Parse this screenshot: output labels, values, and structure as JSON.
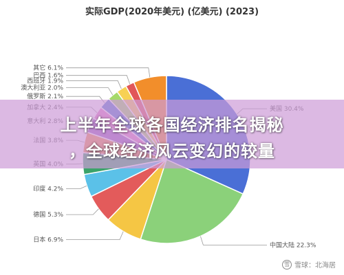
{
  "chart_data": {
    "type": "pie",
    "title": "实际GDP(2020年美元) (亿美元) (2023)",
    "slices": [
      {
        "label": "美国 30.4%",
        "value": 30.4,
        "color": "#4a6fd6"
      },
      {
        "label": "中国大陆 22.3%",
        "value": 22.3,
        "color": "#8bd17a"
      },
      {
        "label": "日本 6.9%",
        "value": 6.9,
        "color": "#f5c644"
      },
      {
        "label": "德国 5.3%",
        "value": 5.3,
        "color": "#e35b5b"
      },
      {
        "label": "印度 4.2%",
        "value": 4.2,
        "color": "#5bc1e8"
      },
      {
        "label": "英国 4.0%",
        "value": 4.0,
        "color": "#3aa36a"
      },
      {
        "label": "法国 3.8%",
        "value": 3.8,
        "color": "#f2914a"
      },
      {
        "label": "意大利 2.8%",
        "value": 2.8,
        "color": "#9b5fc0"
      },
      {
        "label": "加拿大 2.4%",
        "value": 2.4,
        "color": "#e57fc7"
      },
      {
        "label": "俄罗斯 2.1%",
        "value": 2.1,
        "color": "#4f7bd1"
      },
      {
        "label": "澳大利亚 2.0%",
        "value": 2.0,
        "color": "#a6d96a"
      },
      {
        "label": "西班牙 1.9%",
        "value": 1.9,
        "color": "#f7d154"
      },
      {
        "label": "巴西 1.6%",
        "value": 1.6,
        "color": "#e15759"
      },
      {
        "label": "其它 6.1%",
        "value": 6.1,
        "color": "#f28e2b"
      }
    ]
  },
  "overlay": {
    "line1": "上半年全球各国经济排名揭秘",
    "line2": "，全球经济风云变幻的较量"
  },
  "watermark": {
    "text": "雪球：北海居",
    "logo": "雪"
  }
}
